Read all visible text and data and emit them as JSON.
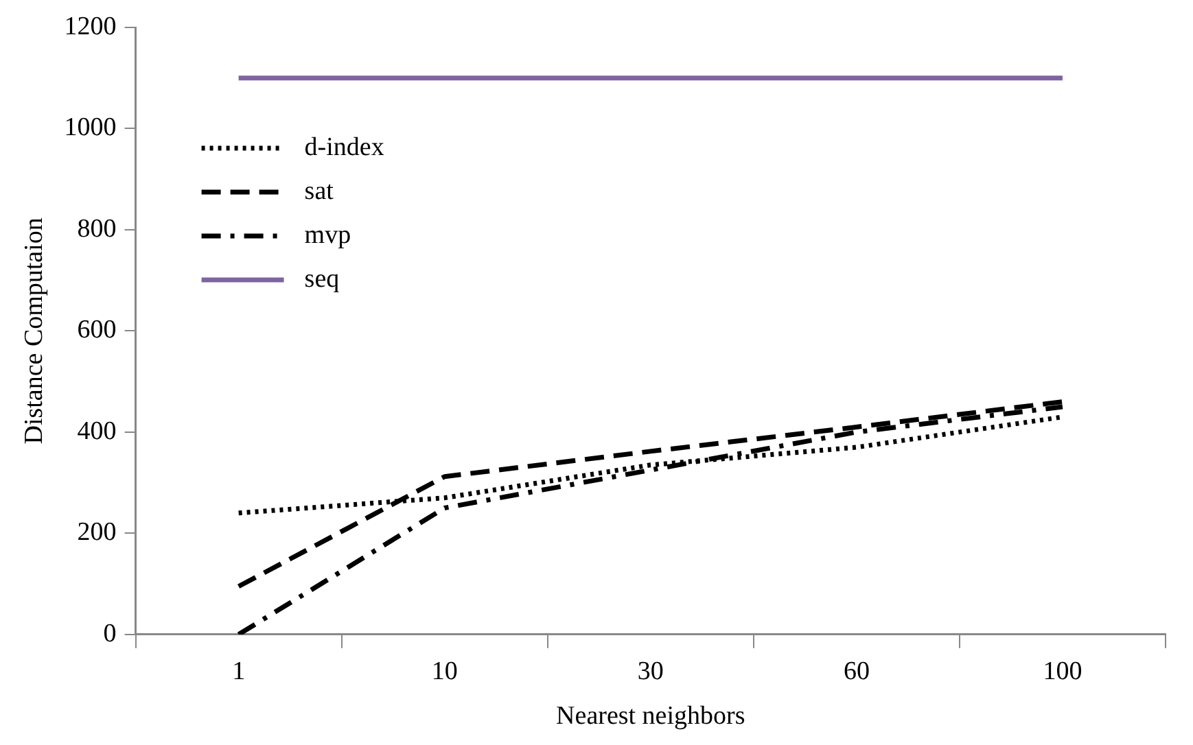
{
  "chart_data": {
    "type": "line",
    "xlabel": "Nearest neighbors",
    "ylabel": "Distance Computaion",
    "categories": [
      "1",
      "10",
      "30",
      "60",
      "100"
    ],
    "series": [
      {
        "name": "d-index",
        "color": "#000000",
        "line_style": "dotted",
        "values": [
          240,
          270,
          335,
          370,
          430
        ]
      },
      {
        "name": "sat",
        "color": "#000000",
        "line_style": "dashed",
        "values": [
          95,
          312,
          362,
          410,
          460
        ]
      },
      {
        "name": "mvp",
        "color": "#000000",
        "line_style": "dashdot",
        "values": [
          0,
          250,
          325,
          400,
          450
        ]
      },
      {
        "name": "seq",
        "color": "#8064a2",
        "line_style": "solid",
        "values": [
          1100,
          1100,
          1100,
          1100,
          1100
        ]
      }
    ],
    "ylim": [
      0,
      1200
    ],
    "yticks": [
      0,
      200,
      400,
      600,
      800,
      1000,
      1200
    ],
    "grid": false,
    "legend": "top left",
    "marker": "none"
  }
}
